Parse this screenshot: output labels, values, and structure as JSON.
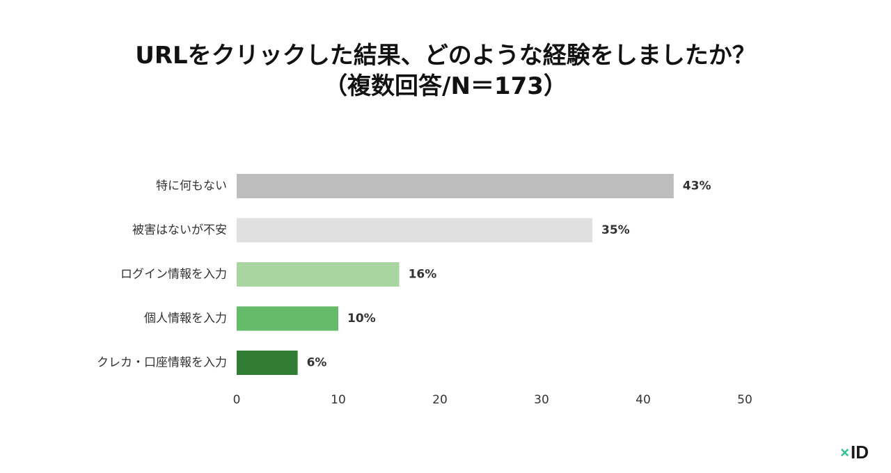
{
  "title": {
    "line1": "URLをクリックした結果、どのような経験をしましたか？",
    "line2": "（複数回答/N＝173）"
  },
  "chart_data": {
    "type": "bar",
    "orientation": "horizontal",
    "categories": [
      "特に何もない",
      "被害はないが不安",
      "ログイン情報を入力",
      "個人情報を入力",
      "クレカ・口座情報を入力"
    ],
    "values": [
      43,
      35,
      16,
      10,
      6
    ],
    "value_labels": [
      "43%",
      "35%",
      "16%",
      "10%",
      "6%"
    ],
    "bar_colors": [
      "#bdbdbd",
      "#e0e0e0",
      "#a9d5a0",
      "#66bb6a",
      "#2e7d32"
    ],
    "xlim": [
      0,
      50
    ],
    "xticks": [
      0,
      10,
      20,
      30,
      40,
      50
    ],
    "xtick_labels": [
      "0",
      "10",
      "20",
      "30",
      "40",
      "50"
    ],
    "grid": false,
    "legend": "none"
  },
  "logo": {
    "mark": "×",
    "text": "ID",
    "mark_color": "#2bc48a"
  }
}
